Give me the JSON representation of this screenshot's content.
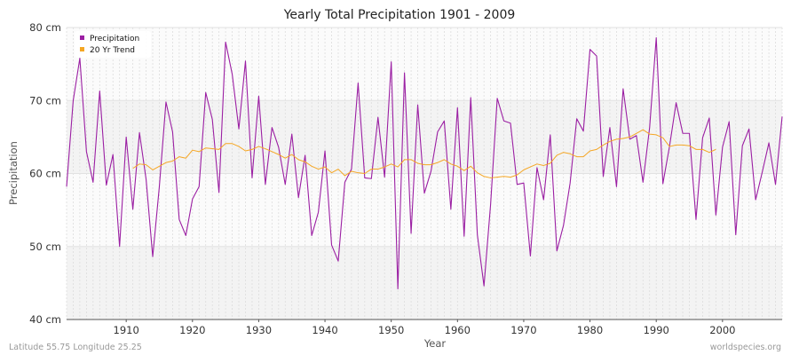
{
  "chart_data": {
    "type": "line",
    "title": "Yearly Total Precipitation 1901 - 2009",
    "xlabel": "Year",
    "ylabel": "Precipitation",
    "xlim": [
      1901,
      2009
    ],
    "ylim": [
      40,
      80
    ],
    "x_ticks": [
      1910,
      1920,
      1930,
      1940,
      1950,
      1960,
      1970,
      1980,
      1990,
      2000
    ],
    "y_ticks": [
      {
        "value": 40,
        "label": "40 cm"
      },
      {
        "value": 50,
        "label": "50 cm"
      },
      {
        "value": 60,
        "label": "60 cm"
      },
      {
        "value": 70,
        "label": "70 cm"
      },
      {
        "value": 80,
        "label": "80 cm"
      }
    ],
    "grid": true,
    "legend_position": "top-left",
    "series": [
      {
        "name": "Precipitation",
        "color": "#9b1fa3",
        "x": [
          1901,
          1902,
          1903,
          1904,
          1905,
          1906,
          1907,
          1908,
          1909,
          1910,
          1911,
          1912,
          1913,
          1914,
          1915,
          1916,
          1917,
          1918,
          1919,
          1920,
          1921,
          1922,
          1923,
          1924,
          1925,
          1926,
          1927,
          1928,
          1929,
          1930,
          1931,
          1932,
          1933,
          1934,
          1935,
          1936,
          1937,
          1938,
          1939,
          1940,
          1941,
          1942,
          1943,
          1944,
          1945,
          1946,
          1947,
          1948,
          1949,
          1950,
          1951,
          1952,
          1953,
          1954,
          1955,
          1956,
          1957,
          1958,
          1959,
          1960,
          1961,
          1962,
          1963,
          1964,
          1965,
          1966,
          1967,
          1968,
          1969,
          1970,
          1971,
          1972,
          1973,
          1974,
          1975,
          1976,
          1977,
          1978,
          1979,
          1980,
          1981,
          1982,
          1983,
          1984,
          1985,
          1986,
          1987,
          1988,
          1989,
          1990,
          1991,
          1992,
          1993,
          1994,
          1995,
          1996,
          1997,
          1998,
          1999,
          2000,
          2001,
          2002,
          2003,
          2004,
          2005,
          2006,
          2007,
          2008,
          2009
        ],
        "values": [
          58.2,
          70.0,
          75.8,
          63.0,
          58.8,
          71.3,
          58.4,
          62.6,
          50.0,
          65.0,
          55.1,
          65.6,
          59.2,
          48.6,
          58.2,
          69.8,
          65.7,
          53.7,
          51.5,
          56.5,
          58.2,
          71.1,
          67.4,
          57.4,
          78.0,
          73.6,
          66.1,
          75.4,
          59.4,
          70.6,
          58.5,
          66.3,
          63.6,
          58.5,
          65.4,
          56.7,
          62.5,
          51.5,
          54.7,
          63.1,
          50.2,
          48.0,
          58.8,
          60.6,
          72.4,
          59.4,
          59.3,
          67.7,
          59.5,
          75.3,
          44.2,
          73.8,
          51.8,
          69.4,
          57.3,
          60.3,
          65.7,
          67.2,
          55.1,
          69.0,
          51.4,
          70.4,
          51.6,
          44.6,
          55.8,
          70.3,
          67.2,
          66.9,
          58.5,
          58.7,
          48.7,
          60.8,
          56.4,
          65.3,
          49.4,
          52.9,
          58.7,
          67.5,
          65.8,
          77.0,
          76.1,
          59.6,
          66.3,
          58.2,
          71.6,
          64.7,
          65.2,
          58.8,
          66.3,
          78.6,
          58.6,
          63.7,
          69.7,
          65.5,
          65.5,
          53.7,
          64.9,
          67.6,
          54.3,
          63.6,
          67.1,
          51.6,
          63.8,
          66.1,
          56.4,
          60.2,
          64.2,
          58.5,
          67.8
        ]
      },
      {
        "name": "20 Yr Trend",
        "color": "#f5a623",
        "x": [
          1911,
          1912,
          1913,
          1914,
          1915,
          1916,
          1917,
          1918,
          1919,
          1920,
          1921,
          1922,
          1923,
          1924,
          1925,
          1926,
          1927,
          1928,
          1929,
          1930,
          1931,
          1932,
          1933,
          1934,
          1935,
          1936,
          1937,
          1938,
          1939,
          1940,
          1941,
          1942,
          1943,
          1944,
          1945,
          1946,
          1947,
          1948,
          1949,
          1950,
          1951,
          1952,
          1953,
          1954,
          1955,
          1956,
          1957,
          1958,
          1959,
          1960,
          1961,
          1962,
          1963,
          1964,
          1965,
          1966,
          1967,
          1968,
          1969,
          1970,
          1971,
          1972,
          1973,
          1974,
          1975,
          1976,
          1977,
          1978,
          1979,
          1980,
          1981,
          1982,
          1983,
          1984,
          1985,
          1986,
          1987,
          1988,
          1989,
          1990,
          1991,
          1992,
          1993,
          1994,
          1995,
          1996,
          1997,
          1998,
          1999
        ],
        "values": [
          60.7,
          61.3,
          61.2,
          60.5,
          61.0,
          61.5,
          61.7,
          62.3,
          62.1,
          63.2,
          63.0,
          63.5,
          63.4,
          63.3,
          64.1,
          64.1,
          63.7,
          63.1,
          63.3,
          63.7,
          63.4,
          63.0,
          62.6,
          62.1,
          62.6,
          61.9,
          61.6,
          61.0,
          60.6,
          60.9,
          60.1,
          60.6,
          59.7,
          60.3,
          60.1,
          60.0,
          60.6,
          60.6,
          60.9,
          61.3,
          60.9,
          61.9,
          61.9,
          61.4,
          61.2,
          61.2,
          61.5,
          61.9,
          61.3,
          61.0,
          60.4,
          61.0,
          60.1,
          59.6,
          59.4,
          59.5,
          59.6,
          59.5,
          59.8,
          60.5,
          60.9,
          61.3,
          61.1,
          61.4,
          62.5,
          62.9,
          62.7,
          62.3,
          62.3,
          63.1,
          63.3,
          63.9,
          64.4,
          64.7,
          64.8,
          65.0,
          65.5,
          66.0,
          65.4,
          65.3,
          64.9,
          63.7,
          63.9,
          63.9,
          63.8,
          63.3,
          63.3,
          62.9,
          63.3
        ]
      }
    ]
  },
  "footer": {
    "left": "Latitude 55.75 Longitude 25.25",
    "right": "worldspecies.org"
  }
}
